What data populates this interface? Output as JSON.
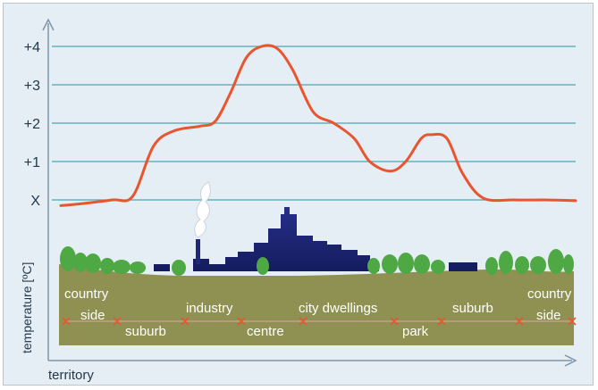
{
  "chart_data": {
    "type": "line",
    "title": "",
    "xlabel": "territory",
    "ylabel": "temperature [ºC]",
    "y_ticks": [
      "X",
      "+1",
      "+2",
      "+3",
      "+4"
    ],
    "ylim": [
      -0.3,
      4.5
    ],
    "grid": true,
    "x": [
      0.0,
      0.04,
      0.1,
      0.14,
      0.18,
      0.22,
      0.27,
      0.3,
      0.33,
      0.36,
      0.39,
      0.42,
      0.45,
      0.49,
      0.53,
      0.57,
      0.6,
      0.64,
      0.67,
      0.7,
      0.72,
      0.75,
      0.78,
      0.82,
      0.88,
      0.94,
      1.0
    ],
    "series": [
      {
        "values": [
          -0.15,
          -0.1,
          0.0,
          0.1,
          1.4,
          1.8,
          1.92,
          2.05,
          2.8,
          3.7,
          4.0,
          3.95,
          3.4,
          2.3,
          2.0,
          1.6,
          1.0,
          0.75,
          1.0,
          1.6,
          1.7,
          1.6,
          0.7,
          0.05,
          0.0,
          0.0,
          -0.02
        ]
      }
    ],
    "zones": [
      {
        "id": "country-side-left",
        "lines": [
          "country",
          "side"
        ]
      },
      {
        "id": "suburb-left",
        "lines": [
          "suburb"
        ]
      },
      {
        "id": "industry",
        "lines": [
          "industry"
        ]
      },
      {
        "id": "centre",
        "lines": [
          "centre"
        ]
      },
      {
        "id": "city-dwellings",
        "lines": [
          "city dwellings"
        ]
      },
      {
        "id": "park",
        "lines": [
          "park"
        ]
      },
      {
        "id": "suburb-right",
        "lines": [
          "suburb"
        ]
      },
      {
        "id": "country-side-right",
        "lines": [
          "country",
          "side"
        ]
      }
    ]
  },
  "colors": {
    "background": "#e4eef4",
    "gridline": "#4ba7b2",
    "curve": "#e8552e",
    "axis": "#7f96aa",
    "ground": "#8f9153",
    "buildings": "#1e2a78",
    "trees": "#4ea844",
    "boundary_marker": "#e8552e",
    "smoke": "#ffffff"
  }
}
